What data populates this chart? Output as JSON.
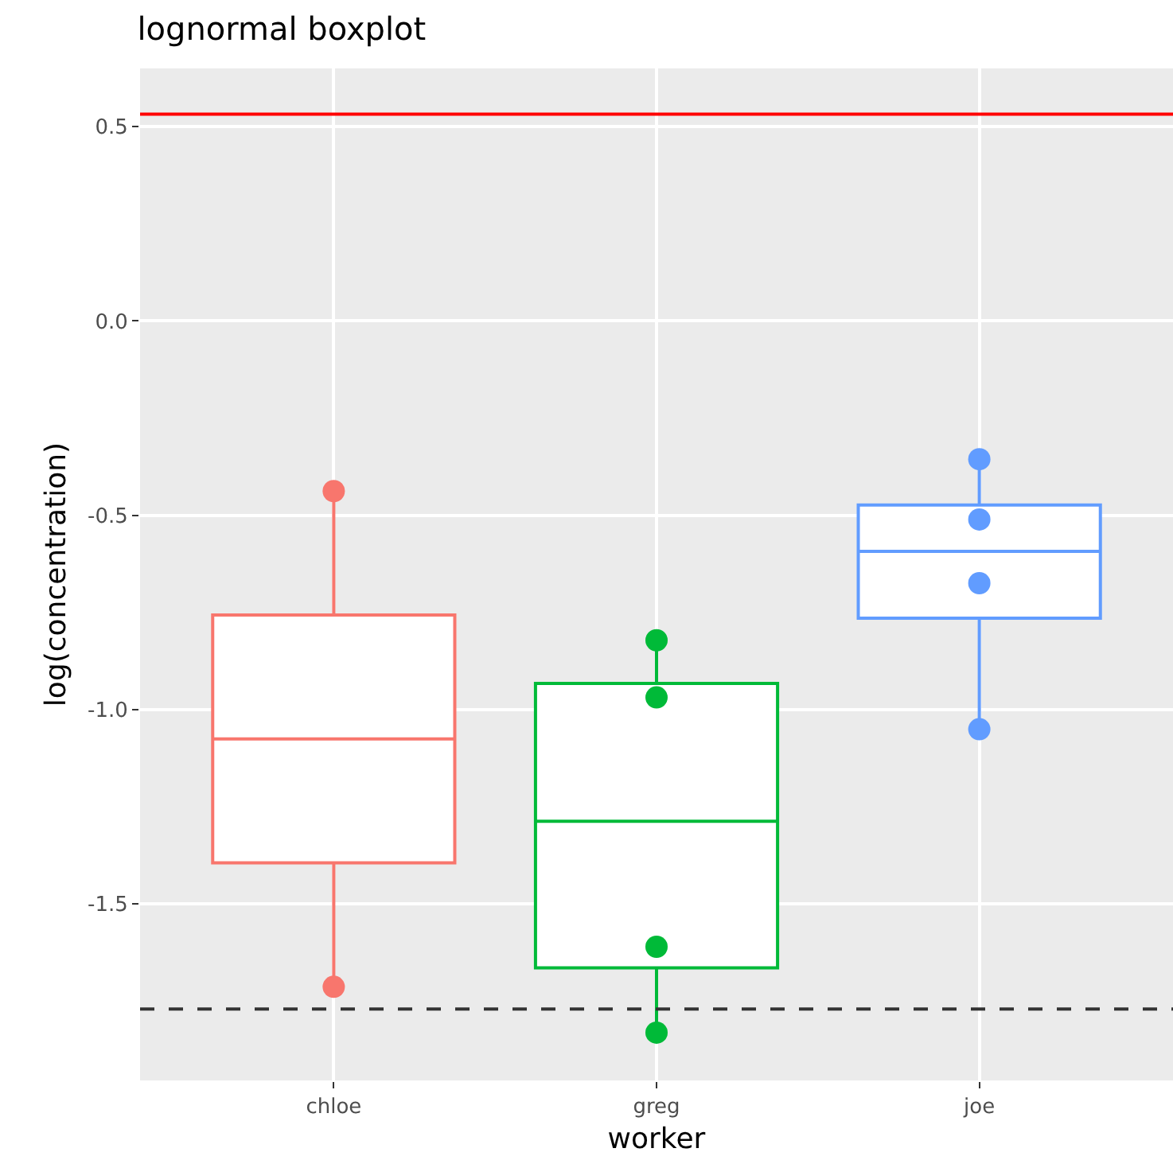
{
  "chart_data": {
    "type": "box",
    "title": "lognormal boxplot",
    "xlabel": "worker",
    "ylabel": "log(concentration)",
    "categories": [
      "chloe",
      "greg",
      "joe"
    ],
    "series": [
      {
        "colors": [
          "#f8766d",
          "#00ba38",
          "#619cff"
        ],
        "boxes": [
          {
            "low": -1.714,
            "q1": -1.395,
            "median": -1.076,
            "q3": -0.757,
            "high": -0.438
          },
          {
            "low": -1.832,
            "q1": -1.665,
            "median": -1.288,
            "q3": -0.933,
            "high": -0.822
          },
          {
            "low": -1.051,
            "q1": -0.765,
            "median": -0.593,
            "q3": -0.474,
            "high": -0.356
          }
        ]
      },
      {
        "type": "scatter",
        "color": "#f8766d",
        "x": [
          "chloe",
          "chloe"
        ],
        "values": [
          -0.438,
          -1.714
        ]
      },
      {
        "type": "scatter",
        "color": "#00ba38",
        "x": [
          "greg",
          "greg",
          "greg",
          "greg"
        ],
        "values": [
          -0.822,
          -0.969,
          -1.611,
          -1.832
        ]
      },
      {
        "type": "scatter",
        "color": "#619cff",
        "x": [
          "joe",
          "joe",
          "joe",
          "joe"
        ],
        "values": [
          -0.356,
          -0.511,
          -0.675,
          -1.051
        ]
      }
    ],
    "ylim": [
      -1.955,
      0.65
    ],
    "yticks": [
      {
        "value": 0.5,
        "label": "0.5"
      },
      {
        "value": 0.0,
        "label": "0.0"
      },
      {
        "value": -0.5,
        "label": "-0.5"
      },
      {
        "value": -1.0,
        "label": "-1.0"
      },
      {
        "value": -1.5,
        "label": "-1.5"
      }
    ],
    "ref_lines": [
      {
        "axis": "y",
        "value": 0.532,
        "color": "#ff0000",
        "line_style": "solid"
      },
      {
        "axis": "y",
        "value": -1.771,
        "color": "#333333",
        "line_style": "dashed"
      }
    ],
    "grid": true,
    "marker": "circle"
  }
}
